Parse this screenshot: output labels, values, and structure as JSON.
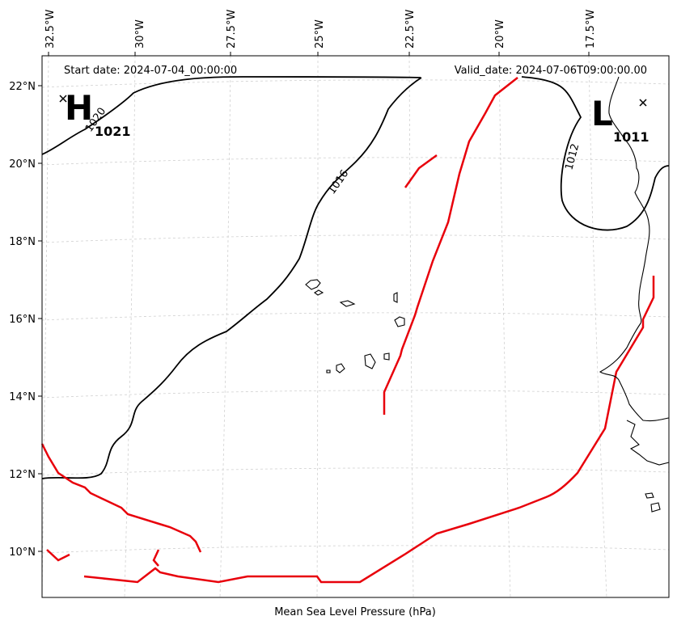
{
  "map": {
    "start_date": "Start date: 2024-07-04_00:00:00",
    "valid_date": "Valid_date: 2024-07-06T09:00:00.00",
    "xlabel": "Mean Sea Level Pressure (hPa)",
    "lon_labels": [
      "32.5°W",
      "30°W",
      "27.5°W",
      "25°W",
      "22.5°W",
      "20°W",
      "17.5°W"
    ],
    "lat_labels": [
      "22°N",
      "20°N",
      "18°N",
      "16°N",
      "14°N",
      "12°N",
      "10°N"
    ],
    "contour_labels": [
      "1020",
      "1016",
      "1012"
    ],
    "high": {
      "letter": "H",
      "value": "1021"
    },
    "low": {
      "letter": "L",
      "value": "1011"
    },
    "front_color": "#e8000b",
    "contour_color": "#000000"
  }
}
